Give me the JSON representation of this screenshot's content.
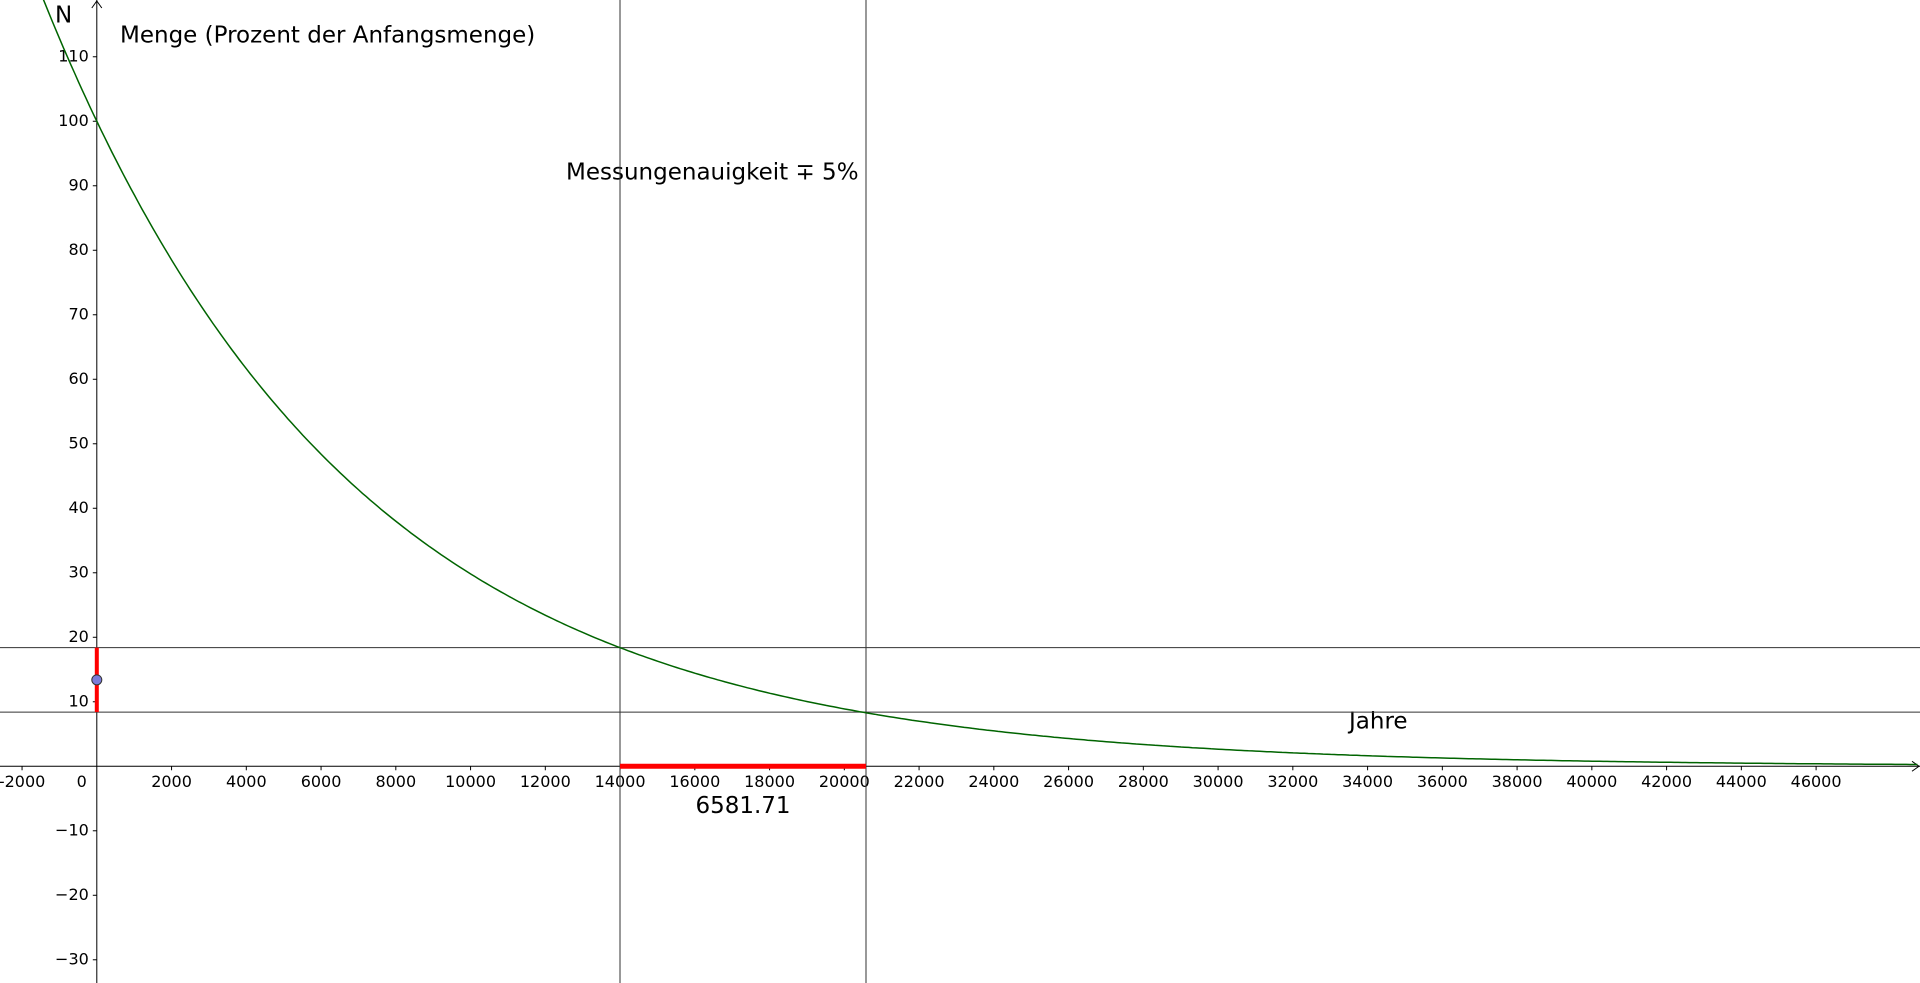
{
  "chart_data": {
    "type": "function",
    "y_label": "Menge (Prozent der Anfangsmenge)",
    "x_label": "Jahre",
    "annotation": "Messungenauigkeit ∓ 5%",
    "function": {
      "name": "N",
      "initial": 100,
      "half_life": 5730,
      "color": "#006400"
    },
    "hlines": [
      18.4,
      8.4
    ],
    "vlines": [
      13998.29,
      20580
    ],
    "segment_label": "6581.71",
    "segment_color": "#ff0000",
    "point": {
      "x": 0,
      "y": 13.4,
      "color": "#7b7bd9"
    },
    "origin_label": "0",
    "xlim": [
      -2590,
      48780
    ],
    "ylim": [
      -33.6,
      118.8
    ],
    "xticks": [
      -2000,
      2000,
      4000,
      6000,
      8000,
      10000,
      12000,
      14000,
      16000,
      18000,
      20000,
      22000,
      24000,
      26000,
      28000,
      30000,
      32000,
      34000,
      36000,
      38000,
      40000,
      42000,
      44000,
      46000
    ],
    "yticks": [
      {
        "value": -30,
        "label": "−30"
      },
      {
        "value": -20,
        "label": "−20"
      },
      {
        "value": -10,
        "label": "−10"
      },
      10,
      20,
      30,
      40,
      50,
      60,
      70,
      80,
      90,
      100,
      110
    ]
  }
}
